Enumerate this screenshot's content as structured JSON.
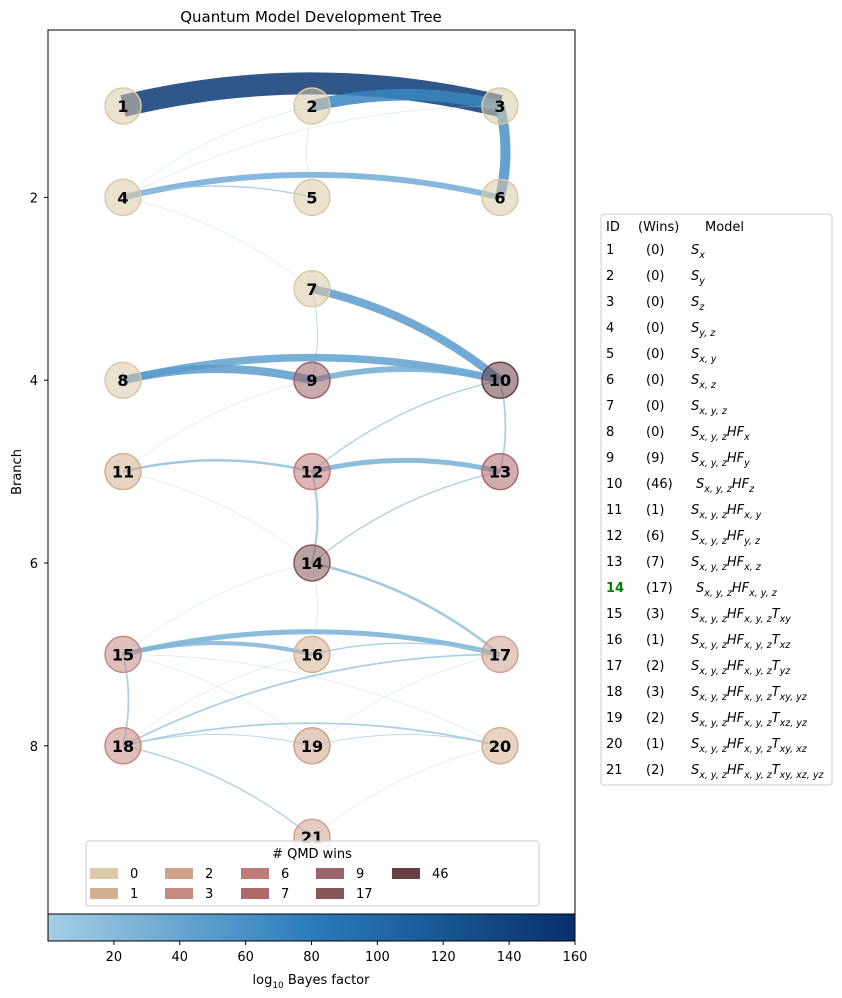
{
  "title": "Quantum Model Development Tree",
  "y_axis": {
    "label": "Branch",
    "ticks": [
      "2",
      "4",
      "6",
      "8"
    ]
  },
  "colorbar": {
    "label_prefix": "log",
    "label_sub": "10",
    "label_suffix": " Bayes factor",
    "ticks": [
      "20",
      "40",
      "60",
      "80",
      "100",
      "120",
      "140",
      "160"
    ],
    "min": 0,
    "max": 160,
    "color_low": "#a6cfe4",
    "color_mid": "#2b7cbc",
    "color_high": "#08306b"
  },
  "legend": {
    "title": "# QMD wins",
    "entries": [
      {
        "label": "0",
        "color": "#dbc9a7"
      },
      {
        "label": "1",
        "color": "#d3b090"
      },
      {
        "label": "2",
        "color": "#cfa28c"
      },
      {
        "label": "3",
        "color": "#c58a82"
      },
      {
        "label": "6",
        "color": "#bf7a7a"
      },
      {
        "label": "7",
        "color": "#ad6a6d"
      },
      {
        "label": "9",
        "color": "#9c6468"
      },
      {
        "label": "17",
        "color": "#86575a"
      },
      {
        "label": "46",
        "color": "#6a3f42"
      }
    ]
  },
  "table": {
    "header": {
      "id": "ID",
      "wins": "(Wins)",
      "model": "Model"
    },
    "rows": [
      {
        "id": "1",
        "wins": "(0)",
        "base": "S",
        "sub": "x",
        "highlight": false
      },
      {
        "id": "2",
        "wins": "(0)",
        "base": "S",
        "sub": "y",
        "highlight": false
      },
      {
        "id": "3",
        "wins": "(0)",
        "base": "S",
        "sub": "z",
        "highlight": false
      },
      {
        "id": "4",
        "wins": "(0)",
        "base": "S",
        "sub": "y, z",
        "highlight": false
      },
      {
        "id": "5",
        "wins": "(0)",
        "base": "S",
        "sub": "x, y",
        "highlight": false
      },
      {
        "id": "6",
        "wins": "(0)",
        "base": "S",
        "sub": "x, z",
        "highlight": false
      },
      {
        "id": "7",
        "wins": "(0)",
        "base": "S",
        "sub": "x, y, z",
        "highlight": false
      },
      {
        "id": "8",
        "wins": "(0)",
        "base": "S",
        "sub": "x, y, z",
        "hf": "x",
        "highlight": false
      },
      {
        "id": "9",
        "wins": "(9)",
        "base": "S",
        "sub": "x, y, z",
        "hf": "y",
        "highlight": false
      },
      {
        "id": "10",
        "wins": "(46)",
        "base": "S",
        "sub": "x, y, z",
        "hf": "z",
        "highlight": false
      },
      {
        "id": "11",
        "wins": "(1)",
        "base": "S",
        "sub": "x, y, z",
        "hf": "x, y",
        "highlight": false
      },
      {
        "id": "12",
        "wins": "(6)",
        "base": "S",
        "sub": "x, y, z",
        "hf": "y, z",
        "highlight": false
      },
      {
        "id": "13",
        "wins": "(7)",
        "base": "S",
        "sub": "x, y, z",
        "hf": "x, z",
        "highlight": false
      },
      {
        "id": "14",
        "wins": "(17)",
        "base": "S",
        "sub": "x, y, z",
        "hf": "x, y, z",
        "highlight": true
      },
      {
        "id": "15",
        "wins": "(3)",
        "base": "S",
        "sub": "x, y, z",
        "hf": "x, y, z",
        "t": "xy",
        "highlight": false
      },
      {
        "id": "16",
        "wins": "(1)",
        "base": "S",
        "sub": "x, y, z",
        "hf": "x, y, z",
        "t": "xz",
        "highlight": false
      },
      {
        "id": "17",
        "wins": "(2)",
        "base": "S",
        "sub": "x, y, z",
        "hf": "x, y, z",
        "t": "yz",
        "highlight": false
      },
      {
        "id": "18",
        "wins": "(3)",
        "base": "S",
        "sub": "x, y, z",
        "hf": "x, y, z",
        "t": "xy, yz",
        "highlight": false
      },
      {
        "id": "19",
        "wins": "(2)",
        "base": "S",
        "sub": "x, y, z",
        "hf": "x, y, z",
        "t": "xz, yz",
        "highlight": false
      },
      {
        "id": "20",
        "wins": "(1)",
        "base": "S",
        "sub": "x, y, z",
        "hf": "x, y, z",
        "t": "xy, xz",
        "highlight": false
      },
      {
        "id": "21",
        "wins": "(2)",
        "base": "S",
        "sub": "x, y, z",
        "hf": "x, y, z",
        "t": "xy, xz, yz",
        "highlight": false
      }
    ],
    "highlight_color": "#008000"
  },
  "nodes": [
    {
      "id": "1",
      "branch": 1,
      "col": 0,
      "wins": 0
    },
    {
      "id": "2",
      "branch": 1,
      "col": 1,
      "wins": 0
    },
    {
      "id": "3",
      "branch": 1,
      "col": 2,
      "wins": 0
    },
    {
      "id": "4",
      "branch": 2,
      "col": 0,
      "wins": 0
    },
    {
      "id": "5",
      "branch": 2,
      "col": 1,
      "wins": 0
    },
    {
      "id": "6",
      "branch": 2,
      "col": 2,
      "wins": 0
    },
    {
      "id": "7",
      "branch": 3,
      "col": 1,
      "wins": 0
    },
    {
      "id": "8",
      "branch": 4,
      "col": 0,
      "wins": 0
    },
    {
      "id": "9",
      "branch": 4,
      "col": 1,
      "wins": 9
    },
    {
      "id": "10",
      "branch": 4,
      "col": 2,
      "wins": 46
    },
    {
      "id": "11",
      "branch": 5,
      "col": 0,
      "wins": 1
    },
    {
      "id": "12",
      "branch": 5,
      "col": 1,
      "wins": 6
    },
    {
      "id": "13",
      "branch": 5,
      "col": 2,
      "wins": 7
    },
    {
      "id": "14",
      "branch": 6,
      "col": 1,
      "wins": 17
    },
    {
      "id": "15",
      "branch": 7,
      "col": 0,
      "wins": 3
    },
    {
      "id": "16",
      "branch": 7,
      "col": 1,
      "wins": 1
    },
    {
      "id": "17",
      "branch": 7,
      "col": 2,
      "wins": 2
    },
    {
      "id": "18",
      "branch": 8,
      "col": 0,
      "wins": 3
    },
    {
      "id": "19",
      "branch": 8,
      "col": 1,
      "wins": 2
    },
    {
      "id": "20",
      "branch": 8,
      "col": 2,
      "wins": 1
    },
    {
      "id": "21",
      "branch": 9,
      "col": 1,
      "wins": 2
    }
  ],
  "edges": [
    {
      "from": "1",
      "to": "3",
      "bf": 150
    },
    {
      "from": "2",
      "to": "3",
      "bf": 70
    },
    {
      "from": "3",
      "to": "6",
      "bf": 60
    },
    {
      "from": "4",
      "to": "6",
      "bf": 35
    },
    {
      "from": "4",
      "to": "5",
      "bf": 8
    },
    {
      "from": "4",
      "to": "2",
      "bf": 2
    },
    {
      "from": "4",
      "to": "3",
      "bf": 2
    },
    {
      "from": "4",
      "to": "7",
      "bf": 2
    },
    {
      "from": "5",
      "to": "2",
      "bf": 1
    },
    {
      "from": "7",
      "to": "10",
      "bf": 50
    },
    {
      "from": "7",
      "to": "9",
      "bf": 5
    },
    {
      "from": "8",
      "to": "10",
      "bf": 45
    },
    {
      "from": "8",
      "to": "9",
      "bf": 50
    },
    {
      "from": "9",
      "to": "10",
      "bf": 35
    },
    {
      "from": "10",
      "to": "13",
      "bf": 10
    },
    {
      "from": "10",
      "to": "12",
      "bf": 8
    },
    {
      "from": "11",
      "to": "12",
      "bf": 15
    },
    {
      "from": "11",
      "to": "9",
      "bf": 2
    },
    {
      "from": "11",
      "to": "14",
      "bf": 1
    },
    {
      "from": "12",
      "to": "13",
      "bf": 30
    },
    {
      "from": "12",
      "to": "14",
      "bf": 12
    },
    {
      "from": "14",
      "to": "13",
      "bf": 8
    },
    {
      "from": "14",
      "to": "17",
      "bf": 15
    },
    {
      "from": "14",
      "to": "15",
      "bf": 1
    },
    {
      "from": "14",
      "to": "16",
      "bf": 1
    },
    {
      "from": "15",
      "to": "17",
      "bf": 30
    },
    {
      "from": "15",
      "to": "16",
      "bf": 25
    },
    {
      "from": "15",
      "to": "18",
      "bf": 10
    },
    {
      "from": "15",
      "to": "19",
      "bf": 2
    },
    {
      "from": "15",
      "to": "20",
      "bf": 1
    },
    {
      "from": "16",
      "to": "17",
      "bf": 8
    },
    {
      "from": "16",
      "to": "18",
      "bf": 2
    },
    {
      "from": "17",
      "to": "18",
      "bf": 10
    },
    {
      "from": "17",
      "to": "19",
      "bf": 2
    },
    {
      "from": "18",
      "to": "20",
      "bf": 10
    },
    {
      "from": "18",
      "to": "19",
      "bf": 5
    },
    {
      "from": "18",
      "to": "21",
      "bf": 8
    },
    {
      "from": "19",
      "to": "20",
      "bf": 5
    },
    {
      "from": "21",
      "to": "20",
      "bf": 2
    }
  ]
}
